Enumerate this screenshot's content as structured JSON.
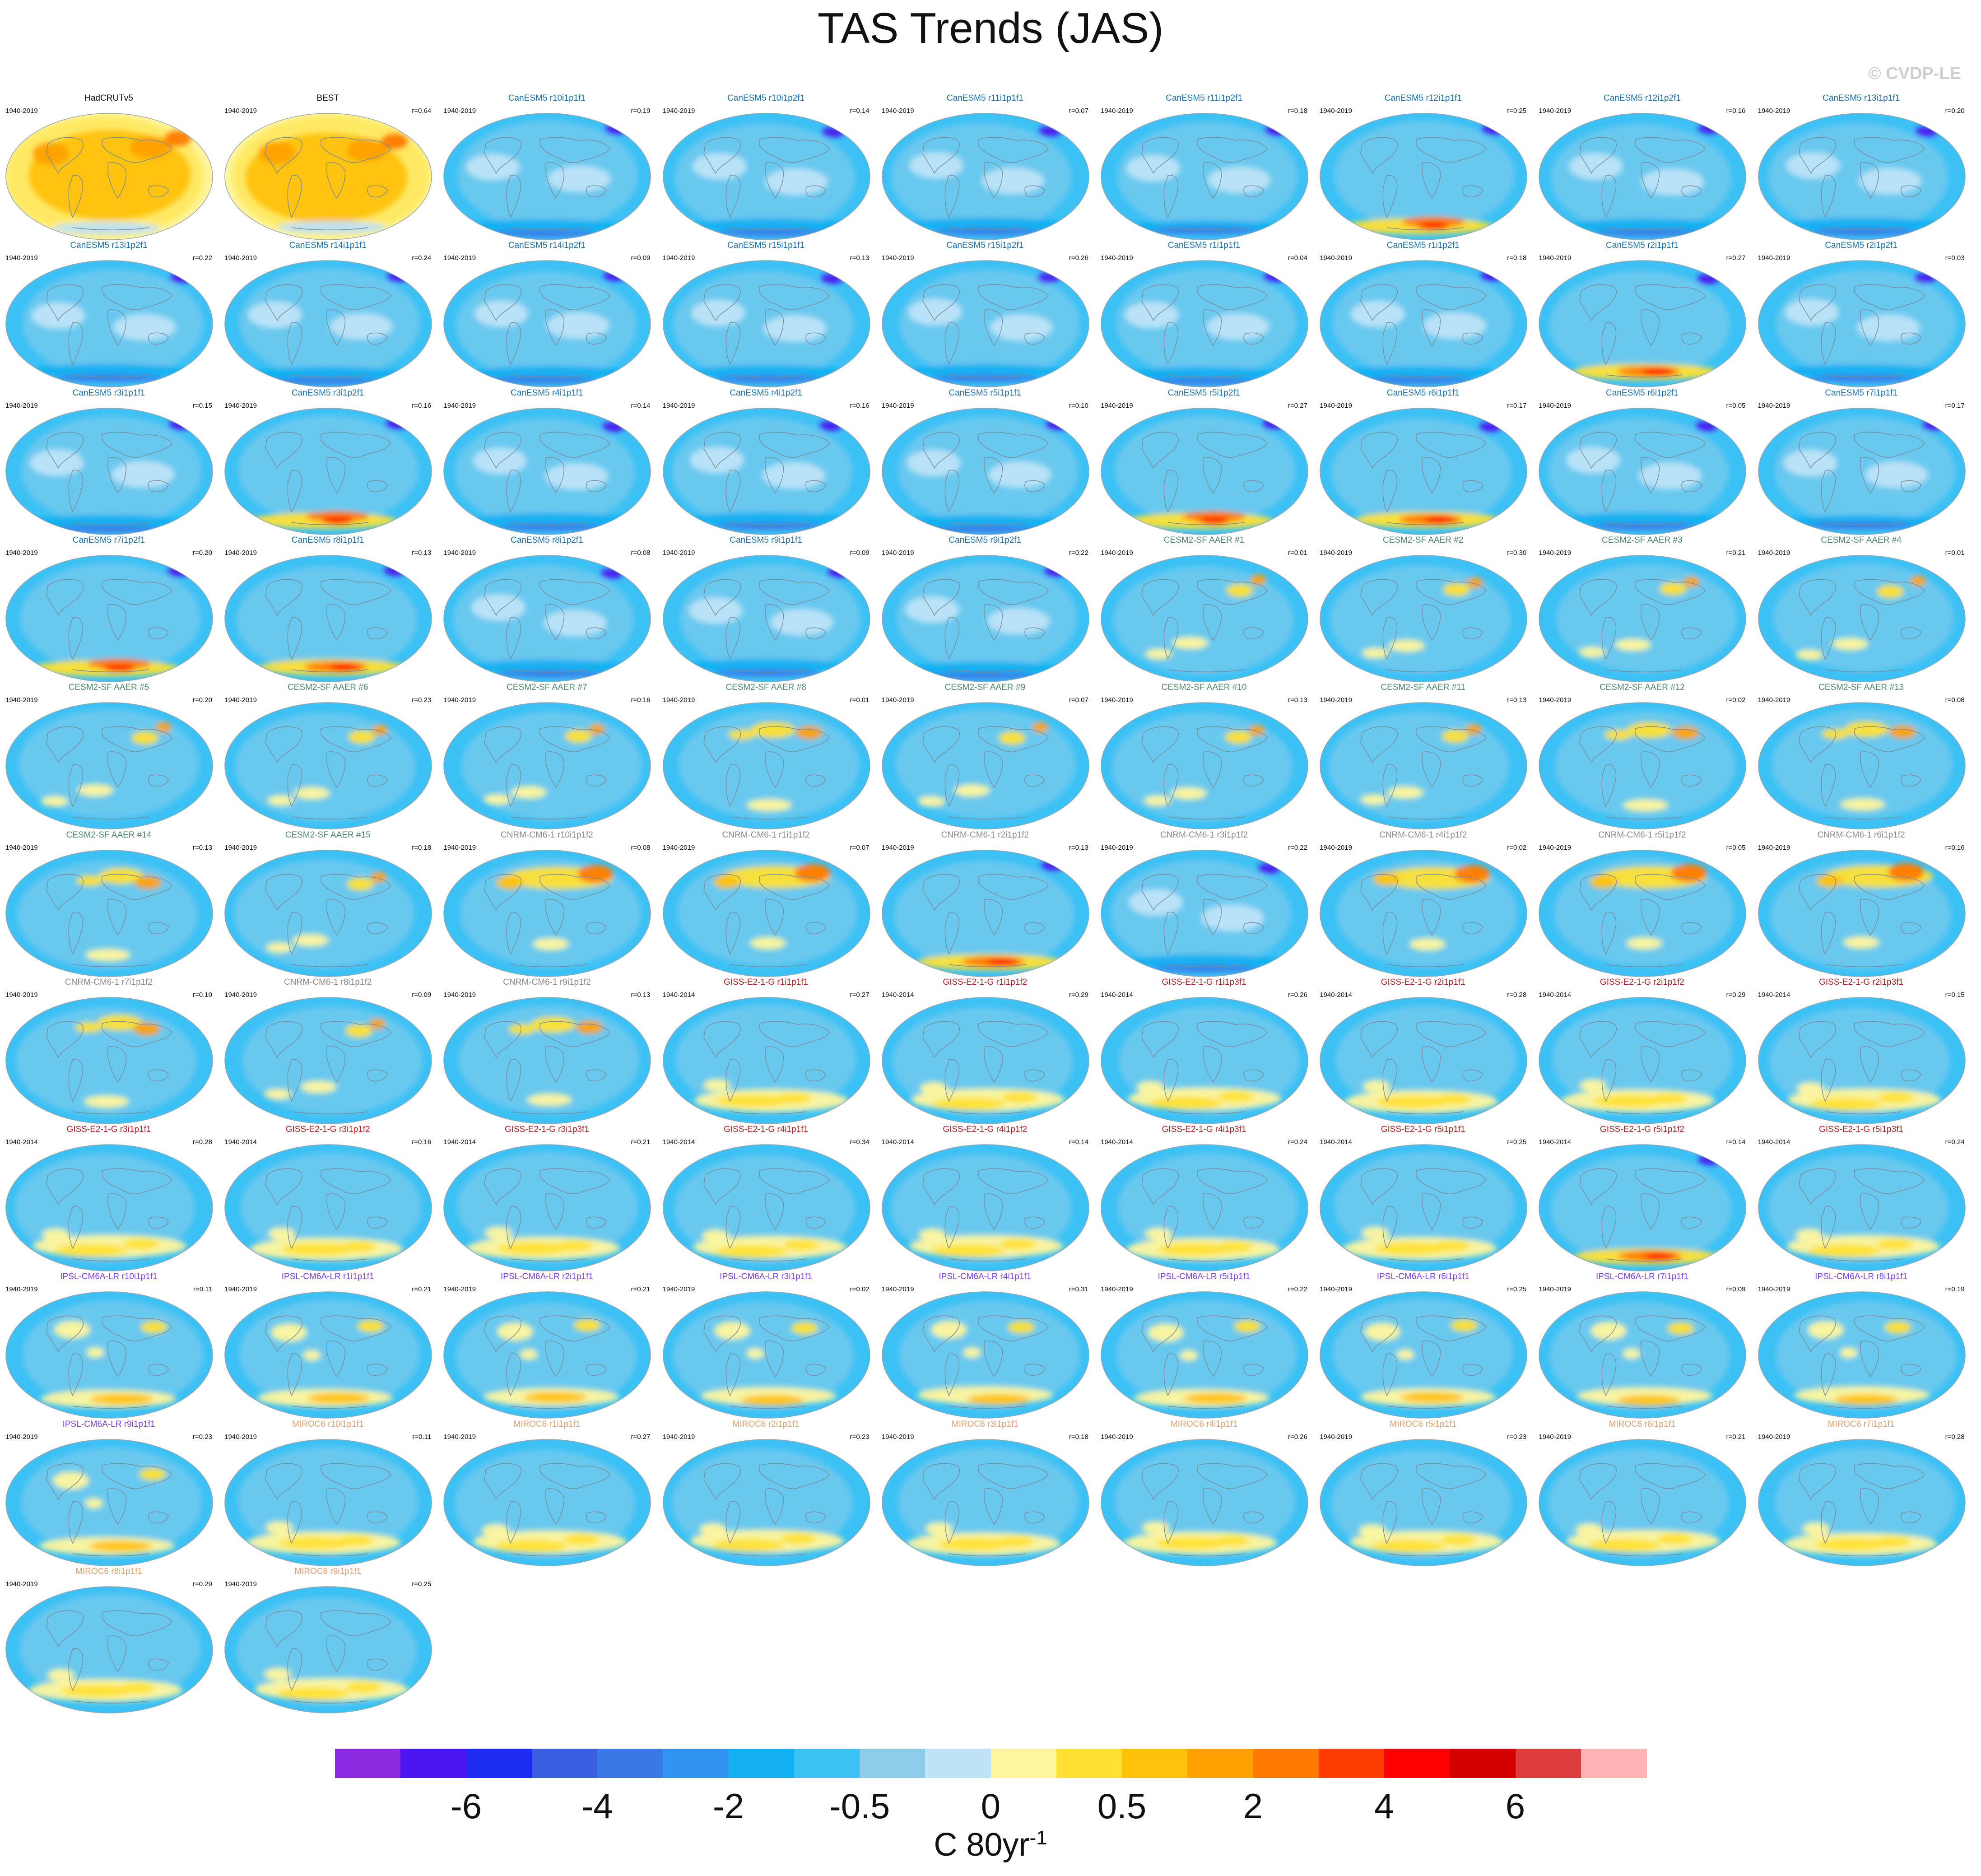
{
  "title": "TAS Trends (JAS)",
  "credit": "© CVDP-LE",
  "colorbar": {
    "colors": [
      "#8a2be2",
      "#4b15f0",
      "#1c2cf0",
      "#3a5fe0",
      "#3a78e6",
      "#2f95f0",
      "#12b0f0",
      "#3cc1f5",
      "#8ecde9",
      "#bde3f5",
      "#fff59d",
      "#ffe033",
      "#ffc107",
      "#ffa000",
      "#ff7a00",
      "#ff3d00",
      "#ff0000",
      "#d40000",
      "#dc3c3c",
      "#ffb3b3"
    ],
    "labels": [
      "-6",
      "-4",
      "-2",
      "-0.5",
      "0",
      "0.5",
      "2",
      "4",
      "6"
    ],
    "units": "C 80yr",
    "units_exp": "-1"
  },
  "panels": [
    {
      "title": "HadCRUTv5",
      "years": "1940-2019",
      "corr": "",
      "group": "obs",
      "pattern": 0
    },
    {
      "title": "BEST",
      "years": "1940-2019",
      "corr": "r=0.64",
      "group": "obs",
      "pattern": 0
    },
    {
      "title": "CanESM5 r10i1p1f1",
      "years": "1940-2019",
      "corr": "r=0.19",
      "group": "canesm",
      "pattern": 1
    },
    {
      "title": "CanESM5 r10i1p2f1",
      "years": "1940-2019",
      "corr": "r=0.14",
      "group": "canesm",
      "pattern": 1
    },
    {
      "title": "CanESM5 r11i1p1f1",
      "years": "1940-2019",
      "corr": "r=0.07",
      "group": "canesm",
      "pattern": 1
    },
    {
      "title": "CanESM5 r11i1p2f1",
      "years": "1940-2019",
      "corr": "r=0.18",
      "group": "canesm",
      "pattern": 1
    },
    {
      "title": "CanESM5 r12i1p1f1",
      "years": "1940-2019",
      "corr": "r=0.25",
      "group": "canesm",
      "pattern": 2
    },
    {
      "title": "CanESM5 r12i1p2f1",
      "years": "1940-2019",
      "corr": "r=0.16",
      "group": "canesm",
      "pattern": 1
    },
    {
      "title": "CanESM5 r13i1p1f1",
      "years": "1940-2019",
      "corr": "r=0.20",
      "group": "canesm",
      "pattern": 1
    },
    {
      "title": "CanESM5 r13i1p2f1",
      "years": "1940-2019",
      "corr": "r=0.22",
      "group": "canesm",
      "pattern": 1
    },
    {
      "title": "CanESM5 r14i1p1f1",
      "years": "1940-2019",
      "corr": "r=0.24",
      "group": "canesm",
      "pattern": 1
    },
    {
      "title": "CanESM5 r14i1p2f1",
      "years": "1940-2019",
      "corr": "r=0.09",
      "group": "canesm",
      "pattern": 1
    },
    {
      "title": "CanESM5 r15i1p1f1",
      "years": "1940-2019",
      "corr": "r=0.13",
      "group": "canesm",
      "pattern": 1
    },
    {
      "title": "CanESM5 r15i1p2f1",
      "years": "1940-2019",
      "corr": "r=0.26",
      "group": "canesm",
      "pattern": 1
    },
    {
      "title": "CanESM5 r1i1p1f1",
      "years": "1940-2019",
      "corr": "r=0.04",
      "group": "canesm",
      "pattern": 1
    },
    {
      "title": "CanESM5 r1i1p2f1",
      "years": "1940-2019",
      "corr": "r=0.18",
      "group": "canesm",
      "pattern": 1
    },
    {
      "title": "CanESM5 r2i1p1f1",
      "years": "1940-2019",
      "corr": "r=0.27",
      "group": "canesm",
      "pattern": 2
    },
    {
      "title": "CanESM5 r2i1p2f1",
      "years": "1940-2019",
      "corr": "r=0.03",
      "group": "canesm",
      "pattern": 1
    },
    {
      "title": "CanESM5 r3i1p1f1",
      "years": "1940-2019",
      "corr": "r=0.15",
      "group": "canesm",
      "pattern": 1
    },
    {
      "title": "CanESM5 r3i1p2f1",
      "years": "1940-2019",
      "corr": "r=0.16",
      "group": "canesm",
      "pattern": 2
    },
    {
      "title": "CanESM5 r4i1p1f1",
      "years": "1940-2019",
      "corr": "r=0.14",
      "group": "canesm",
      "pattern": 1
    },
    {
      "title": "CanESM5 r4i1p2f1",
      "years": "1940-2019",
      "corr": "r=0.16",
      "group": "canesm",
      "pattern": 1
    },
    {
      "title": "CanESM5 r5i1p1f1",
      "years": "1940-2019",
      "corr": "r=0.10",
      "group": "canesm",
      "pattern": 1
    },
    {
      "title": "CanESM5 r5i1p2f1",
      "years": "1940-2019",
      "corr": "r=0.27",
      "group": "canesm",
      "pattern": 2
    },
    {
      "title": "CanESM5 r6i1p1f1",
      "years": "1940-2019",
      "corr": "r=0.17",
      "group": "canesm",
      "pattern": 2
    },
    {
      "title": "CanESM5 r6i1p2f1",
      "years": "1940-2019",
      "corr": "r=0.05",
      "group": "canesm",
      "pattern": 1
    },
    {
      "title": "CanESM5 r7i1p1f1",
      "years": "1940-2019",
      "corr": "r=0.17",
      "group": "canesm",
      "pattern": 1
    },
    {
      "title": "CanESM5 r7i1p2f1",
      "years": "1940-2019",
      "corr": "r=0.20",
      "group": "canesm",
      "pattern": 2
    },
    {
      "title": "CanESM5 r8i1p1f1",
      "years": "1940-2019",
      "corr": "r=0.13",
      "group": "canesm",
      "pattern": 2
    },
    {
      "title": "CanESM5 r8i1p2f1",
      "years": "1940-2019",
      "corr": "r=0.08",
      "group": "canesm",
      "pattern": 1
    },
    {
      "title": "CanESM5 r9i1p1f1",
      "years": "1940-2019",
      "corr": "r=0.09",
      "group": "canesm",
      "pattern": 1
    },
    {
      "title": "CanESM5 r9i1p2f1",
      "years": "1940-2019",
      "corr": "r=0.22",
      "group": "canesm",
      "pattern": 1
    },
    {
      "title": "CESM2-SF AAER #1",
      "years": "1940-2019",
      "corr": "r=0.01",
      "group": "cesm",
      "pattern": 3
    },
    {
      "title": "CESM2-SF AAER #2",
      "years": "1940-2019",
      "corr": "r=0.30",
      "group": "cesm",
      "pattern": 3
    },
    {
      "title": "CESM2-SF AAER #3",
      "years": "1940-2019",
      "corr": "r=0.21",
      "group": "cesm",
      "pattern": 3
    },
    {
      "title": "CESM2-SF AAER #4",
      "years": "1940-2019",
      "corr": "r=0.01",
      "group": "cesm",
      "pattern": 3
    },
    {
      "title": "CESM2-SF AAER #5",
      "years": "1940-2019",
      "corr": "r=0.20",
      "group": "cesm",
      "pattern": 3
    },
    {
      "title": "CESM2-SF AAER #6",
      "years": "1940-2019",
      "corr": "r=0.23",
      "group": "cesm",
      "pattern": 3
    },
    {
      "title": "CESM2-SF AAER #7",
      "years": "1940-2019",
      "corr": "r=0.16",
      "group": "cesm",
      "pattern": 3
    },
    {
      "title": "CESM2-SF AAER #8",
      "years": "1940-2019",
      "corr": "r=0.01",
      "group": "cesm",
      "pattern": 4
    },
    {
      "title": "CESM2-SF AAER #9",
      "years": "1940-2019",
      "corr": "r=0.07",
      "group": "cesm",
      "pattern": 3
    },
    {
      "title": "CESM2-SF AAER #10",
      "years": "1940-2019",
      "corr": "r=0.13",
      "group": "cesm",
      "pattern": 3
    },
    {
      "title": "CESM2-SF AAER #11",
      "years": "1940-2019",
      "corr": "r=0.13",
      "group": "cesm",
      "pattern": 3
    },
    {
      "title": "CESM2-SF AAER #12",
      "years": "1940-2019",
      "corr": "r=0.02",
      "group": "cesm",
      "pattern": 4
    },
    {
      "title": "CESM2-SF AAER #13",
      "years": "1940-2019",
      "corr": "r=0.08",
      "group": "cesm",
      "pattern": 4
    },
    {
      "title": "CESM2-SF AAER #14",
      "years": "1940-2019",
      "corr": "r=0.13",
      "group": "cesm",
      "pattern": 4
    },
    {
      "title": "CESM2-SF AAER #15",
      "years": "1940-2019",
      "corr": "r=0.18",
      "group": "cesm",
      "pattern": 3
    },
    {
      "title": "CNRM-CM6-1 r10i1p1f2",
      "years": "1940-2019",
      "corr": "r=0.08",
      "group": "cnrm",
      "pattern": 5
    },
    {
      "title": "CNRM-CM6-1 r1i1p1f2",
      "years": "1940-2019",
      "corr": "r=0.07",
      "group": "cnrm",
      "pattern": 5
    },
    {
      "title": "CNRM-CM6-1 r2i1p1f2",
      "years": "1940-2019",
      "corr": "r=0.13",
      "group": "cnrm",
      "pattern": 2
    },
    {
      "title": "CNRM-CM6-1 r3i1p1f2",
      "years": "1940-2019",
      "corr": "r=0.22",
      "group": "cnrm",
      "pattern": 1
    },
    {
      "title": "CNRM-CM6-1 r4i1p1f2",
      "years": "1940-2019",
      "corr": "r=0.02",
      "group": "cnrm",
      "pattern": 5
    },
    {
      "title": "CNRM-CM6-1 r5i1p1f2",
      "years": "1940-2019",
      "corr": "r=0.05",
      "group": "cnrm",
      "pattern": 5
    },
    {
      "title": "CNRM-CM6-1 r6i1p1f2",
      "years": "1940-2019",
      "corr": "r=0.16",
      "group": "cnrm",
      "pattern": 5
    },
    {
      "title": "CNRM-CM6-1 r7i1p1f2",
      "years": "1940-2019",
      "corr": "r=0.10",
      "group": "cnrm",
      "pattern": 4
    },
    {
      "title": "CNRM-CM6-1 r8i1p1f2",
      "years": "1940-2019",
      "corr": "r=0.09",
      "group": "cnrm",
      "pattern": 3
    },
    {
      "title": "CNRM-CM6-1 r9i1p1f2",
      "years": "1940-2019",
      "corr": "r=0.13",
      "group": "cnrm",
      "pattern": 4
    },
    {
      "title": "GISS-E2-1-G r1i1p1f1",
      "years": "1940-2014",
      "corr": "r=0.27",
      "group": "giss",
      "pattern": 6
    },
    {
      "title": "GISS-E2-1-G r1i1p1f2",
      "years": "1940-2014",
      "corr": "r=0.29",
      "group": "giss",
      "pattern": 6
    },
    {
      "title": "GISS-E2-1-G r1i1p3f1",
      "years": "1940-2014",
      "corr": "r=0.26",
      "group": "giss",
      "pattern": 6
    },
    {
      "title": "GISS-E2-1-G r2i1p1f1",
      "years": "1940-2014",
      "corr": "r=0.28",
      "group": "giss",
      "pattern": 6
    },
    {
      "title": "GISS-E2-1-G r2i1p1f2",
      "years": "1940-2014",
      "corr": "r=0.29",
      "group": "giss",
      "pattern": 6
    },
    {
      "title": "GISS-E2-1-G r2i1p3f1",
      "years": "1940-2014",
      "corr": "r=0.15",
      "group": "giss",
      "pattern": 6
    },
    {
      "title": "GISS-E2-1-G r3i1p1f1",
      "years": "1940-2014",
      "corr": "r=0.28",
      "group": "giss",
      "pattern": 6
    },
    {
      "title": "GISS-E2-1-G r3i1p1f2",
      "years": "1940-2014",
      "corr": "r=0.16",
      "group": "giss",
      "pattern": 6
    },
    {
      "title": "GISS-E2-1-G r3i1p3f1",
      "years": "1940-2014",
      "corr": "r=0.21",
      "group": "giss",
      "pattern": 6
    },
    {
      "title": "GISS-E2-1-G r4i1p1f1",
      "years": "1940-2014",
      "corr": "r=0.34",
      "group": "giss",
      "pattern": 6
    },
    {
      "title": "GISS-E2-1-G r4i1p1f2",
      "years": "1940-2014",
      "corr": "r=0.14",
      "group": "giss",
      "pattern": 6
    },
    {
      "title": "GISS-E2-1-G r4i1p3f1",
      "years": "1940-2014",
      "corr": "r=0.24",
      "group": "giss",
      "pattern": 6
    },
    {
      "title": "GISS-E2-1-G r5i1p1f1",
      "years": "1940-2014",
      "corr": "r=0.25",
      "group": "giss",
      "pattern": 6
    },
    {
      "title": "GISS-E2-1-G r5i1p1f2",
      "years": "1940-2014",
      "corr": "r=0.14",
      "group": "giss",
      "pattern": 2
    },
    {
      "title": "GISS-E2-1-G r5i1p3f1",
      "years": "1940-2014",
      "corr": "r=0.24",
      "group": "giss",
      "pattern": 6
    },
    {
      "title": "IPSL-CM6A-LR r10i1p1f1",
      "years": "1940-2019",
      "corr": "r=0.11",
      "group": "ipsl",
      "pattern": 7
    },
    {
      "title": "IPSL-CM6A-LR r1i1p1f1",
      "years": "1940-2019",
      "corr": "r=0.21",
      "group": "ipsl",
      "pattern": 7
    },
    {
      "title": "IPSL-CM6A-LR r2i1p1f1",
      "years": "1940-2019",
      "corr": "r=0.21",
      "group": "ipsl",
      "pattern": 7
    },
    {
      "title": "IPSL-CM6A-LR r3i1p1f1",
      "years": "1940-2019",
      "corr": "r=0.02",
      "group": "ipsl",
      "pattern": 7
    },
    {
      "title": "IPSL-CM6A-LR r4i1p1f1",
      "years": "1940-2019",
      "corr": "r=0.31",
      "group": "ipsl",
      "pattern": 7
    },
    {
      "title": "IPSL-CM6A-LR r5i1p1f1",
      "years": "1940-2019",
      "corr": "r=0.22",
      "group": "ipsl",
      "pattern": 7
    },
    {
      "title": "IPSL-CM6A-LR r6i1p1f1",
      "years": "1940-2019",
      "corr": "r=0.25",
      "group": "ipsl",
      "pattern": 7
    },
    {
      "title": "IPSL-CM6A-LR r7i1p1f1",
      "years": "1940-2019",
      "corr": "r=0.09",
      "group": "ipsl",
      "pattern": 7
    },
    {
      "title": "IPSL-CM6A-LR r8i1p1f1",
      "years": "1940-2019",
      "corr": "r=0.19",
      "group": "ipsl",
      "pattern": 7
    },
    {
      "title": "IPSL-CM6A-LR r9i1p1f1",
      "years": "1940-2019",
      "corr": "r=0.23",
      "group": "ipsl",
      "pattern": 7
    },
    {
      "title": "MIROC6 r10i1p1f1",
      "years": "1940-2019",
      "corr": "r=0.11",
      "group": "miroc",
      "pattern": 6
    },
    {
      "title": "MIROC6 r1i1p1f1",
      "years": "1940-2019",
      "corr": "r=0.27",
      "group": "miroc",
      "pattern": 6
    },
    {
      "title": "MIROC6 r2i1p1f1",
      "years": "1940-2019",
      "corr": "r=0.23",
      "group": "miroc",
      "pattern": 6
    },
    {
      "title": "MIROC6 r3i1p1f1",
      "years": "1940-2019",
      "corr": "r=0.18",
      "group": "miroc",
      "pattern": 6
    },
    {
      "title": "MIROC6 r4i1p1f1",
      "years": "1940-2019",
      "corr": "r=0.26",
      "group": "miroc",
      "pattern": 6
    },
    {
      "title": "MIROC6 r5i1p1f1",
      "years": "1940-2019",
      "corr": "r=0.23",
      "group": "miroc",
      "pattern": 6
    },
    {
      "title": "MIROC6 r6i1p1f1",
      "years": "1940-2019",
      "corr": "r=0.21",
      "group": "miroc",
      "pattern": 6
    },
    {
      "title": "MIROC6 r7i1p1f1",
      "years": "1940-2019",
      "corr": "r=0.28",
      "group": "miroc",
      "pattern": 6
    },
    {
      "title": "MIROC6 r8i1p1f1",
      "years": "1940-2019",
      "corr": "r=0.29",
      "group": "miroc",
      "pattern": 6
    },
    {
      "title": "MIROC6 r9i1p1f1",
      "years": "1940-2019",
      "corr": "r=0.25",
      "group": "miroc",
      "pattern": 6
    }
  ],
  "group_colors": {
    "obs": "#111111",
    "canesm": "#1a6fb0",
    "cesm": "#4f8a6a",
    "cnrm": "#8a8a8a",
    "giss": "#b02020",
    "ipsl": "#7b3ff2",
    "miroc": "#e0a070"
  }
}
